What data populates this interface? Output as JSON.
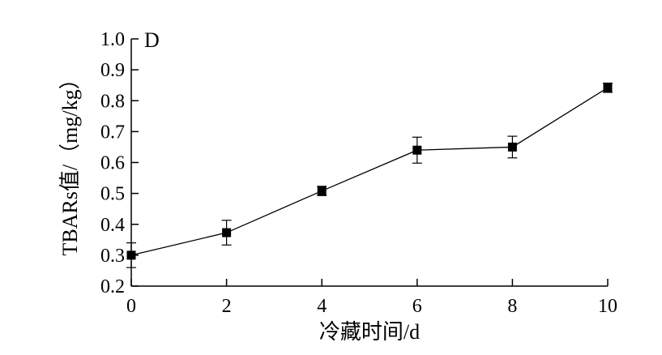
{
  "chart_data": {
    "type": "line",
    "panel_label": "D",
    "xlabel": "冷藏时间/d",
    "ylabel": "TBARs值/（mg/kg）",
    "x": [
      0,
      2,
      4,
      6,
      8,
      10
    ],
    "series": [
      {
        "values": [
          0.3,
          0.373,
          0.508,
          0.64,
          0.65,
          0.842
        ],
        "errors": [
          0.04,
          0.04,
          0.015,
          0.042,
          0.035,
          0.015
        ]
      }
    ],
    "xlim": [
      0,
      10
    ],
    "ylim": [
      0.2,
      1.0
    ],
    "xticks": [
      "0",
      "2",
      "4",
      "6",
      "8",
      "10"
    ],
    "yticks": [
      "0.2",
      "0.3",
      "0.4",
      "0.5",
      "0.6",
      "0.7",
      "0.8",
      "0.9",
      "1.0"
    ],
    "grid": false,
    "marker": "square",
    "color": "#000000"
  }
}
